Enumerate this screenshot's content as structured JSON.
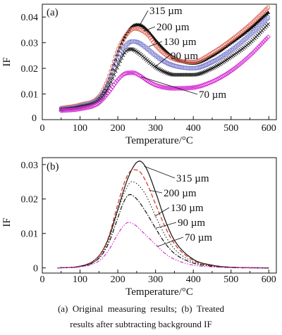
{
  "chart_data": [
    {
      "type": "scatter",
      "panel_label": "(a)",
      "xlabel": "Temperature/°C",
      "ylabel": "IF",
      "xlim": [
        0,
        620
      ],
      "ylim": [
        0,
        0.045
      ],
      "xticks": [
        0,
        100,
        200,
        300,
        400,
        500,
        600
      ],
      "xtick_labels": [
        "0",
        "100",
        "200",
        "300",
        "400",
        "500",
        "600"
      ],
      "yticks": [
        0.01,
        0.02,
        0.03,
        0.04
      ],
      "ytick_labels": [
        "0.01",
        "0.02",
        "0.03",
        "0.04"
      ],
      "grid": false,
      "series": [
        {
          "name": "315 µm",
          "color": "#111111",
          "marker": "filled-triangle",
          "x": [
            50,
            100,
            150,
            175,
            200,
            225,
            250,
            265,
            280,
            300,
            325,
            350,
            400,
            450,
            500,
            550,
            600
          ],
          "y": [
            0.0043,
            0.0055,
            0.0085,
            0.015,
            0.026,
            0.034,
            0.037,
            0.0365,
            0.0345,
            0.031,
            0.027,
            0.024,
            0.022,
            0.025,
            0.03,
            0.0355,
            0.042
          ]
        },
        {
          "name": "200 µm",
          "color": "#e06a5a",
          "marker": "open-circle",
          "x": [
            50,
            100,
            150,
            175,
            200,
            225,
            245,
            260,
            280,
            300,
            325,
            350,
            400,
            450,
            500,
            550,
            600
          ],
          "y": [
            0.0045,
            0.0058,
            0.009,
            0.016,
            0.027,
            0.0335,
            0.0355,
            0.035,
            0.033,
            0.029,
            0.0255,
            0.0235,
            0.0225,
            0.026,
            0.031,
            0.037,
            0.044
          ]
        },
        {
          "name": "130 µm",
          "color": "#7f7fd0",
          "marker": "open-square",
          "x": [
            50,
            100,
            150,
            175,
            200,
            225,
            240,
            255,
            275,
            300,
            325,
            350,
            400,
            450,
            500,
            550,
            600
          ],
          "y": [
            0.0042,
            0.0053,
            0.0082,
            0.014,
            0.024,
            0.0295,
            0.0305,
            0.03,
            0.028,
            0.025,
            0.0225,
            0.021,
            0.02,
            0.0225,
            0.027,
            0.033,
            0.04
          ]
        },
        {
          "name": "90 µm",
          "color": "#222222",
          "marker": "cross",
          "x": [
            50,
            100,
            150,
            175,
            200,
            220,
            235,
            255,
            275,
            300,
            325,
            350,
            400,
            450,
            500,
            550,
            600
          ],
          "y": [
            0.0038,
            0.0048,
            0.0075,
            0.0125,
            0.021,
            0.0265,
            0.0275,
            0.026,
            0.0235,
            0.0205,
            0.0185,
            0.0175,
            0.0175,
            0.02,
            0.0245,
            0.03,
            0.0375
          ]
        },
        {
          "name": "70 µm",
          "color": "#d531d5",
          "marker": "open-diamond",
          "x": [
            50,
            100,
            150,
            175,
            200,
            220,
            240,
            260,
            280,
            300,
            325,
            350,
            400,
            450,
            500,
            550,
            600
          ],
          "y": [
            0.0035,
            0.0042,
            0.0065,
            0.0105,
            0.0155,
            0.018,
            0.0183,
            0.017,
            0.015,
            0.0135,
            0.0125,
            0.0122,
            0.0125,
            0.0148,
            0.019,
            0.025,
            0.0325
          ]
        }
      ]
    },
    {
      "type": "line",
      "panel_label": "(b)",
      "xlabel": "Temperature/°C",
      "ylabel": "IF",
      "xlim": [
        0,
        620
      ],
      "ylim": [
        -0.0015,
        0.032
      ],
      "xticks": [
        0,
        100,
        200,
        300,
        400,
        500,
        600
      ],
      "xtick_labels": [
        "0",
        "100",
        "200",
        "300",
        "400",
        "500",
        "600"
      ],
      "yticks": [
        0,
        0.01,
        0.02,
        0.03
      ],
      "ytick_labels": [
        "0",
        "0.01",
        "0.02",
        "0.03"
      ],
      "grid": false,
      "series": [
        {
          "name": "315 µm",
          "color": "#111111",
          "dash": "solid",
          "x": [
            40,
            100,
            150,
            175,
            200,
            225,
            245,
            258,
            275,
            300,
            325,
            350,
            400,
            450,
            500,
            600
          ],
          "y": [
            0.0,
            0.0005,
            0.0035,
            0.0085,
            0.017,
            0.0255,
            0.03,
            0.031,
            0.029,
            0.022,
            0.014,
            0.008,
            0.0025,
            0.0008,
            0.0002,
            0.0
          ]
        },
        {
          "name": "200 µm",
          "color": "#d03020",
          "dash": "dashed",
          "x": [
            40,
            100,
            150,
            175,
            200,
            220,
            240,
            255,
            275,
            300,
            325,
            350,
            400,
            450,
            500,
            600
          ],
          "y": [
            0.0,
            0.0005,
            0.0035,
            0.0088,
            0.0185,
            0.0255,
            0.0285,
            0.0282,
            0.025,
            0.0185,
            0.012,
            0.007,
            0.0022,
            0.0007,
            0.0002,
            0.0
          ]
        },
        {
          "name": "130 µm",
          "color": "#333333",
          "dash": "dotted",
          "x": [
            40,
            100,
            150,
            175,
            200,
            220,
            237,
            255,
            275,
            300,
            325,
            350,
            400,
            450,
            500,
            600
          ],
          "y": [
            0.0,
            0.0004,
            0.003,
            0.0078,
            0.0165,
            0.0225,
            0.025,
            0.024,
            0.021,
            0.015,
            0.0095,
            0.0055,
            0.0018,
            0.0006,
            0.0002,
            0.0
          ]
        },
        {
          "name": "90 µm",
          "color": "#111111",
          "dash": "dashdot",
          "x": [
            40,
            100,
            150,
            175,
            200,
            215,
            232,
            250,
            270,
            300,
            325,
            350,
            400,
            450,
            500,
            600
          ],
          "y": [
            0.0,
            0.0004,
            0.0028,
            0.007,
            0.0145,
            0.019,
            0.0213,
            0.02,
            0.017,
            0.0115,
            0.0072,
            0.0042,
            0.0014,
            0.0005,
            0.0001,
            0.0
          ]
        },
        {
          "name": "70 µm",
          "color": "#d531d5",
          "dash": "dashdotdot",
          "x": [
            40,
            100,
            150,
            175,
            200,
            215,
            228,
            245,
            265,
            300,
            325,
            350,
            400,
            450,
            500,
            600
          ],
          "y": [
            0.0,
            0.0003,
            0.002,
            0.005,
            0.0098,
            0.0122,
            0.0132,
            0.0125,
            0.0105,
            0.0068,
            0.0042,
            0.0025,
            0.0008,
            0.0003,
            0.0001,
            0.0
          ]
        }
      ]
    }
  ],
  "caption": {
    "line1": "(a)  Original  measuring  results;  (b)  Treated",
    "line2": "results after subtracting background IF"
  }
}
